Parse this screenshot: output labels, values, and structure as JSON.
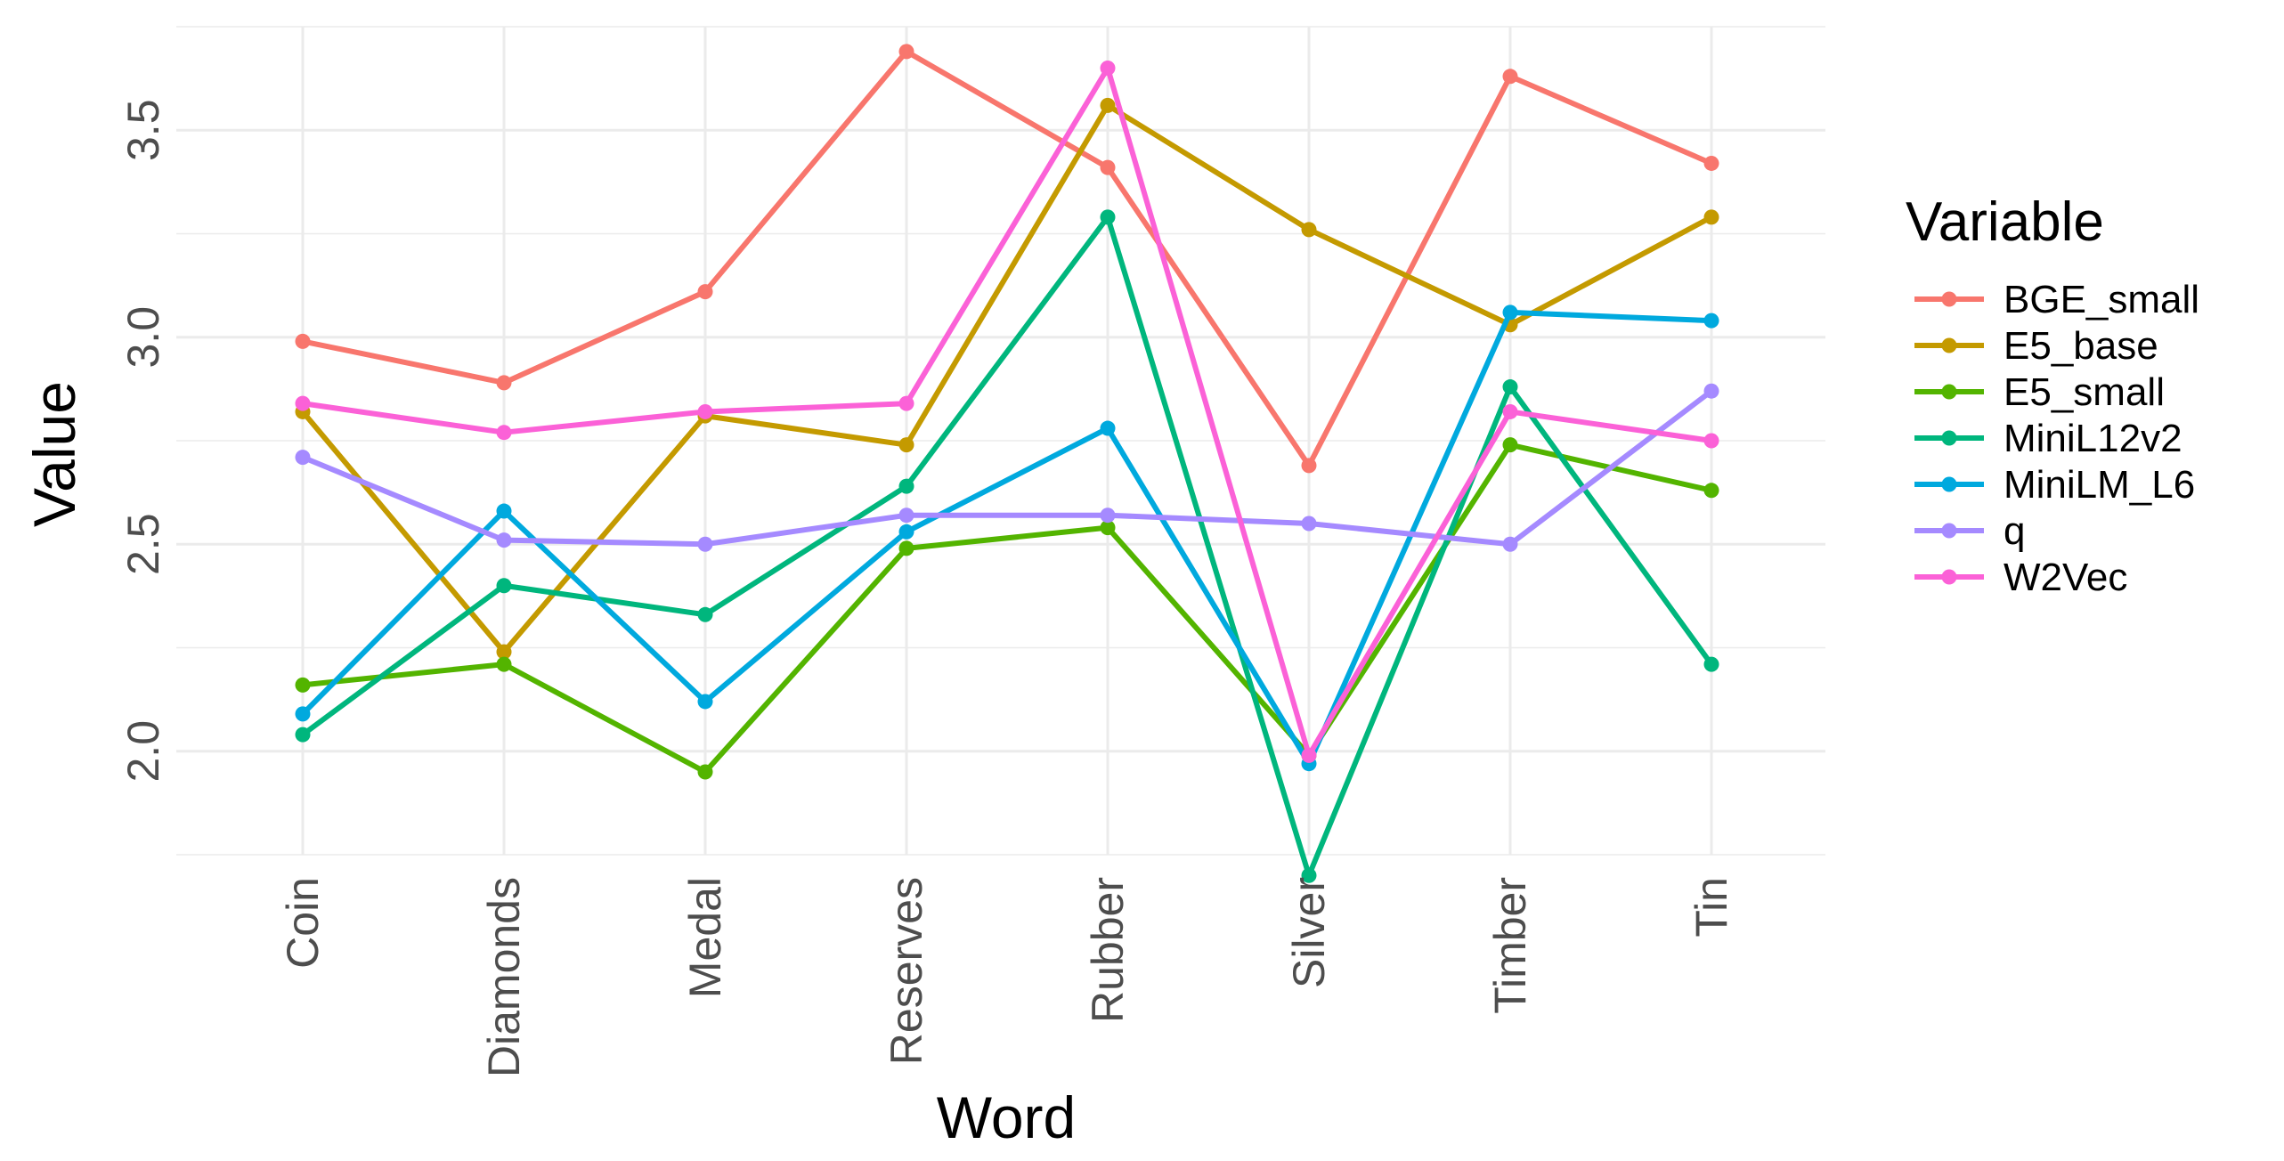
{
  "chart_data": {
    "type": "line",
    "xlabel": "Word",
    "ylabel": "Value",
    "categories": [
      "Coin",
      "Diamonds",
      "Medal",
      "Reserves",
      "Rubber",
      "Silver",
      "Timber",
      "Tin"
    ],
    "ylim": [
      1.75,
      3.75
    ],
    "yticks": [
      2.0,
      2.5,
      3.0,
      3.5
    ],
    "ytick_labels": [
      "2.0",
      "2.5",
      "3.0",
      "3.5"
    ],
    "grid": true,
    "legend": {
      "title": "Variable",
      "position": "right"
    },
    "series": [
      {
        "name": "BGE_small",
        "color": "#F8766D",
        "values": [
          2.99,
          2.89,
          3.11,
          3.69,
          3.41,
          2.69,
          3.63,
          3.42
        ]
      },
      {
        "name": "E5_base",
        "color": "#C49A00",
        "values": [
          2.82,
          2.24,
          2.81,
          2.74,
          3.56,
          3.26,
          3.03,
          3.29
        ]
      },
      {
        "name": "E5_small",
        "color": "#53B400",
        "values": [
          2.16,
          2.21,
          1.95,
          2.49,
          2.54,
          1.99,
          2.74,
          2.63
        ]
      },
      {
        "name": "MiniL12v2",
        "color": "#00B67D",
        "values": [
          2.04,
          2.4,
          2.33,
          2.64,
          3.29,
          1.7,
          2.88,
          2.21
        ]
      },
      {
        "name": "MiniLM_L6",
        "color": "#00A9DE",
        "values": [
          2.09,
          2.58,
          2.12,
          2.53,
          2.78,
          1.97,
          3.06,
          3.04
        ]
      },
      {
        "name": "q",
        "color": "#A58AFF",
        "values": [
          2.71,
          2.51,
          2.5,
          2.57,
          2.57,
          2.55,
          2.5,
          2.87
        ]
      },
      {
        "name": "W2Vec",
        "color": "#FB61D7",
        "values": [
          2.84,
          2.77,
          2.82,
          2.84,
          3.65,
          1.99,
          2.82,
          2.75
        ]
      }
    ]
  }
}
